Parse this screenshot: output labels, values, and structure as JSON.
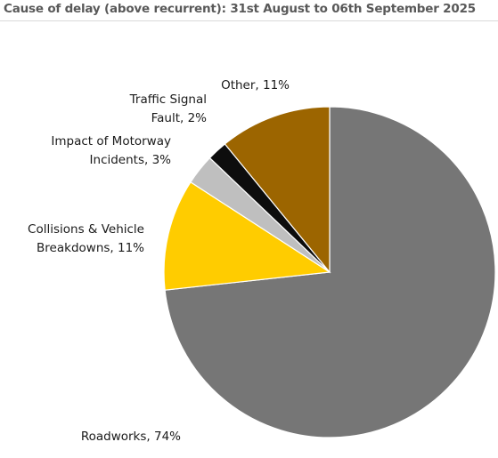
{
  "chart_data": {
    "type": "pie",
    "title": "Cause of delay (above recurrent): 31st August to 06th September 2025",
    "slices": [
      {
        "name": "Roadworks",
        "value": 74,
        "label_lines": [
          "Roadworks, 74%"
        ],
        "color": "#767676"
      },
      {
        "name": "Collisions & Vehicle Breakdowns",
        "value": 11,
        "label_lines": [
          "Collisions & Vehicle",
          "Breakdowns, 11%"
        ],
        "color": "#FFCC00"
      },
      {
        "name": "Impact of Motorway Incidents",
        "value": 3,
        "label_lines": [
          "Impact of Motorway",
          "Incidents, 3%"
        ],
        "color": "#BFBFBF"
      },
      {
        "name": "Traffic Signal Fault",
        "value": 2,
        "label_lines": [
          "Traffic Signal",
          "Fault, 2%"
        ],
        "color": "#0D0D0D"
      },
      {
        "name": "Other",
        "value": 11,
        "label_lines": [
          "Other, 11%"
        ],
        "color": "#9C6500"
      }
    ],
    "legend": "none",
    "start_angle": "12 o'clock",
    "direction": "clockwise"
  }
}
